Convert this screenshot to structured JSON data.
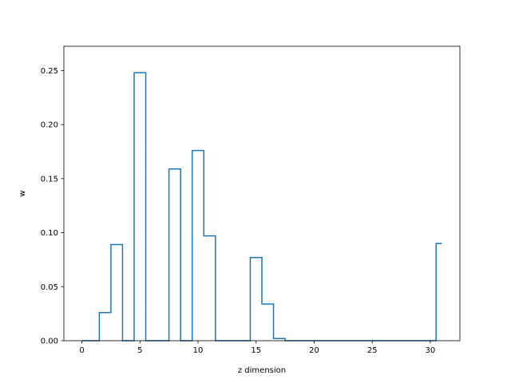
{
  "chart_data": {
    "type": "line",
    "drawstyle": "steps-mid",
    "title": "",
    "xlabel": "z dimension",
    "ylabel": "w",
    "xlim": [
      -1.55,
      32.55
    ],
    "ylim": [
      0.0,
      0.2725
    ],
    "xticks": [
      0,
      5,
      10,
      15,
      20,
      25,
      30
    ],
    "yticks": [
      0.0,
      0.05,
      0.1,
      0.15,
      0.2,
      0.25
    ],
    "grid": false,
    "legend": "none",
    "series": [
      {
        "color": "#1f77b4",
        "x": [
          0,
          1,
          2,
          3,
          4,
          5,
          6,
          7,
          8,
          9,
          10,
          11,
          12,
          13,
          14,
          15,
          16,
          17,
          18,
          19,
          20,
          21,
          22,
          23,
          24,
          25,
          26,
          27,
          28,
          29,
          30,
          31
        ],
        "values": [
          0.0,
          0.0,
          0.026,
          0.089,
          0.0,
          0.248,
          0.0,
          0.0,
          0.159,
          0.0,
          0.176,
          0.097,
          0.0,
          0.0,
          0.0,
          0.077,
          0.034,
          0.002,
          0.0,
          0.0,
          0.0,
          0.0,
          0.0,
          0.0,
          0.0,
          0.0,
          0.0,
          0.0,
          0.0,
          0.0,
          0.0,
          0.09
        ]
      }
    ]
  }
}
